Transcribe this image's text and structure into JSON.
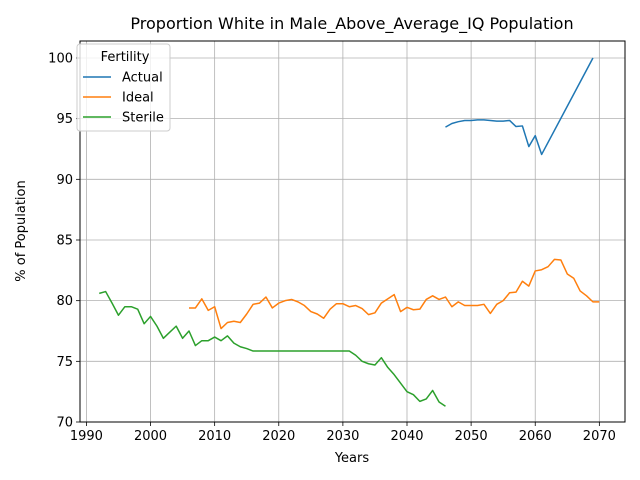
{
  "chart_data": {
    "type": "line",
    "title": "Proportion White in Male_Above_Average_IQ Population",
    "xlabel": "Years",
    "ylabel": "% of Population",
    "xlim": [
      1989,
      2074
    ],
    "ylim": [
      70,
      101.4
    ],
    "xticks": [
      1990,
      2000,
      2010,
      2020,
      2030,
      2040,
      2050,
      2060,
      2070
    ],
    "yticks": [
      70,
      75,
      80,
      85,
      90,
      95,
      100
    ],
    "grid": true,
    "legend": {
      "title": "Fertility",
      "position": "top-left"
    },
    "series": [
      {
        "name": "Actual",
        "color": "#1f77b4",
        "x": [
          2046,
          2047,
          2048,
          2049,
          2050,
          2051,
          2052,
          2053,
          2054,
          2055,
          2056,
          2057,
          2058,
          2059,
          2060,
          2061,
          2069
        ],
        "y": [
          94.3,
          94.6,
          94.75,
          94.85,
          94.85,
          94.9,
          94.9,
          94.85,
          94.8,
          94.8,
          94.85,
          94.35,
          94.4,
          92.7,
          93.6,
          92.05,
          100.0
        ]
      },
      {
        "name": "Ideal",
        "color": "#ff7f0e",
        "x": [
          2006,
          2007,
          2008,
          2009,
          2010,
          2011,
          2012,
          2013,
          2014,
          2015,
          2016,
          2017,
          2018,
          2019,
          2020,
          2021,
          2022,
          2023,
          2024,
          2025,
          2026,
          2027,
          2028,
          2029,
          2030,
          2031,
          2032,
          2033,
          2034,
          2035,
          2036,
          2037,
          2038,
          2039,
          2040,
          2041,
          2042,
          2043,
          2044,
          2045,
          2046,
          2047,
          2048,
          2049,
          2050,
          2051,
          2052,
          2053,
          2054,
          2055,
          2056,
          2057,
          2058,
          2059,
          2060,
          2061,
          2062,
          2063,
          2064,
          2065,
          2066,
          2067,
          2068,
          2069,
          2070
        ],
        "y": [
          79.4,
          79.4,
          80.15,
          79.2,
          79.5,
          77.7,
          78.2,
          78.3,
          78.2,
          78.9,
          79.7,
          79.8,
          80.3,
          79.4,
          79.8,
          80.0,
          80.1,
          79.9,
          79.6,
          79.1,
          78.9,
          78.55,
          79.3,
          79.75,
          79.75,
          79.5,
          79.6,
          79.35,
          78.85,
          79.0,
          79.8,
          80.15,
          80.5,
          79.1,
          79.45,
          79.25,
          79.3,
          80.1,
          80.4,
          80.1,
          80.3,
          79.5,
          79.9,
          79.6,
          79.6,
          79.6,
          79.7,
          78.95,
          79.7,
          80.0,
          80.65,
          80.7,
          81.6,
          81.2,
          82.45,
          82.55,
          82.8,
          83.4,
          83.35,
          82.2,
          81.85,
          80.8,
          80.4,
          79.9,
          79.9
        ]
      },
      {
        "name": "Sterile",
        "color": "#2ca02c",
        "x": [
          1992,
          1993,
          1994,
          1995,
          1996,
          1997,
          1998,
          1999,
          2000,
          2001,
          2002,
          2003,
          2004,
          2005,
          2006,
          2007,
          2008,
          2009,
          2010,
          2011,
          2012,
          2013,
          2014,
          2015,
          2016,
          2017,
          2018,
          2019,
          2020,
          2021,
          2022,
          2023,
          2024,
          2025,
          2026,
          2027,
          2028,
          2029,
          2030,
          2031,
          2032,
          2033,
          2034,
          2035,
          2036,
          2037,
          2038,
          2039,
          2040,
          2041,
          2042,
          2043,
          2044,
          2045,
          2046
        ],
        "y": [
          80.6,
          80.75,
          79.8,
          78.8,
          79.5,
          79.5,
          79.3,
          78.1,
          78.7,
          77.9,
          76.9,
          77.4,
          77.9,
          76.9,
          77.5,
          76.3,
          76.7,
          76.7,
          77.0,
          76.7,
          77.1,
          76.5,
          76.2,
          76.05,
          75.85,
          75.85,
          75.85,
          75.85,
          75.85,
          75.85,
          75.85,
          75.85,
          75.85,
          75.85,
          75.85,
          75.85,
          75.85,
          75.85,
          75.85,
          75.85,
          75.5,
          75.0,
          74.8,
          74.7,
          75.3,
          74.5,
          73.9,
          73.2,
          72.5,
          72.25,
          71.7,
          71.9,
          72.6,
          71.65,
          71.3
        ]
      }
    ]
  }
}
